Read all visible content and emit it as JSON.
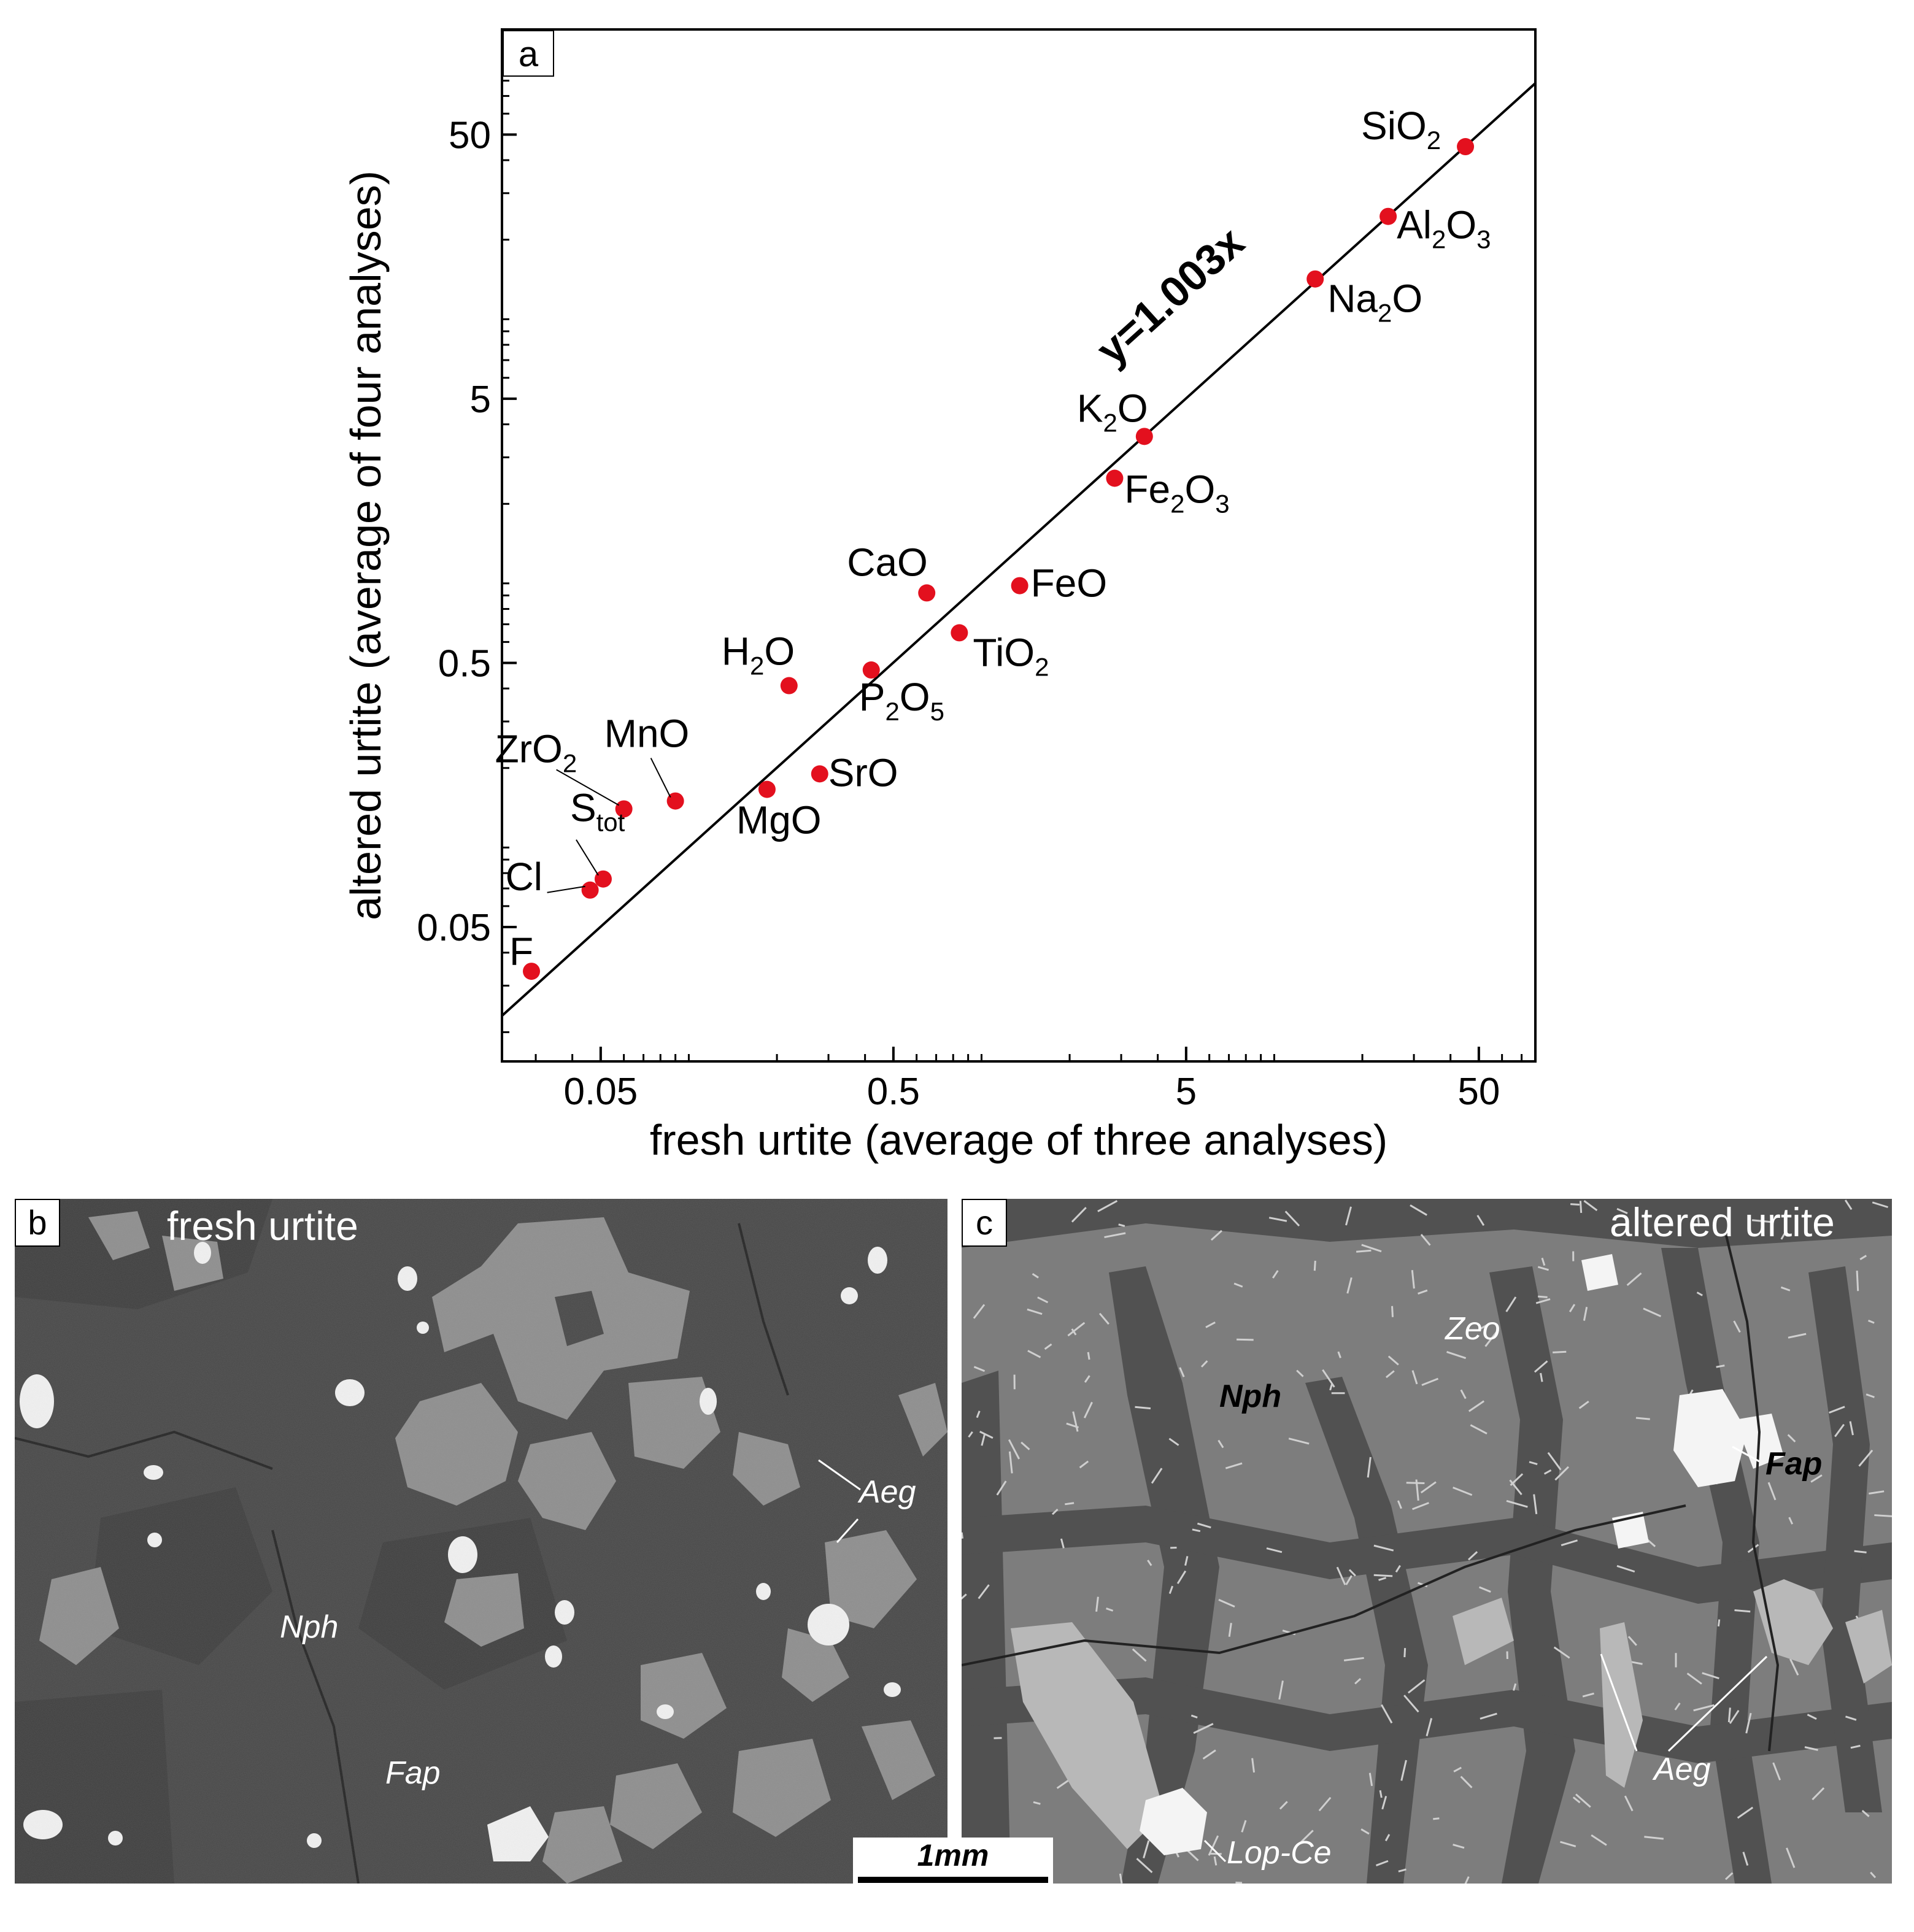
{
  "panel_a": {
    "letter": "a",
    "equation_label": "y=1.003x",
    "xlabel": "fresh urtite (average of three analyses)",
    "ylabel": "altered urtite (average of four analyses)",
    "x_ticks": [
      "0.05",
      "0.5",
      "5",
      "50"
    ],
    "y_ticks": [
      "0.05",
      "0.5",
      "5",
      "50"
    ],
    "point_color": "#e3101e"
  },
  "chart_data": {
    "type": "scatter",
    "scale": "log-log",
    "xlabel": "fresh urtite (average of three analyses)",
    "ylabel": "altered urtite (average of four analyses)",
    "xlim": [
      0.023,
      78
    ],
    "ylim": [
      0.0155,
      125
    ],
    "x_ticks": [
      0.05,
      0.5,
      5,
      50
    ],
    "y_ticks": [
      0.05,
      0.5,
      5,
      50
    ],
    "fit_line": {
      "label": "y=1.003x",
      "slope": 1.003
    },
    "points": [
      {
        "label": "SiO2",
        "base": "SiO",
        "sub": "2",
        "x": 45,
        "y": 45
      },
      {
        "label": "Al2O3",
        "base": "Al",
        "sub": "2",
        "tail": "O",
        "sub2": "3",
        "x": 24.5,
        "y": 24.5
      },
      {
        "label": "Na2O",
        "base": "Na",
        "sub": "2",
        "tail": "O",
        "x": 13.8,
        "y": 14.2
      },
      {
        "label": "K2O",
        "base": "K",
        "sub": "2",
        "tail": "O",
        "x": 3.6,
        "y": 3.6
      },
      {
        "label": "Fe2O3",
        "base": "Fe",
        "sub": "2",
        "tail": "O",
        "sub2": "3",
        "x": 2.85,
        "y": 2.5
      },
      {
        "label": "FeO",
        "base": "FeO",
        "x": 1.35,
        "y": 0.98
      },
      {
        "label": "CaO",
        "base": "CaO",
        "x": 0.65,
        "y": 0.92
      },
      {
        "label": "TiO2",
        "base": "TiO",
        "sub": "2",
        "x": 0.84,
        "y": 0.65
      },
      {
        "label": "P2O5",
        "base": "P",
        "sub": "2",
        "tail": "O",
        "sub2": "5",
        "x": 0.42,
        "y": 0.47
      },
      {
        "label": "H2O",
        "base": "H",
        "sub": "2",
        "tail": "O",
        "x": 0.22,
        "y": 0.41
      },
      {
        "label": "SrO",
        "base": "SrO",
        "x": 0.28,
        "y": 0.19
      },
      {
        "label": "MgO",
        "base": "MgO",
        "x": 0.185,
        "y": 0.166
      },
      {
        "label": "MnO",
        "base": "MnO",
        "x": 0.09,
        "y": 0.15
      },
      {
        "label": "ZrO2",
        "base": "ZrO",
        "sub": "2",
        "x": 0.06,
        "y": 0.14
      },
      {
        "label": "Stot",
        "base": "S",
        "sub": "tot",
        "x": 0.051,
        "y": 0.076
      },
      {
        "label": "Cl",
        "base": "Cl",
        "x": 0.046,
        "y": 0.069
      },
      {
        "label": "F",
        "base": "F",
        "x": 0.029,
        "y": 0.034
      }
    ]
  },
  "panel_b": {
    "letter": "b",
    "title": "fresh urtite",
    "labels": {
      "aeg": "Aeg",
      "nph": "Nph",
      "fap": "Fap"
    }
  },
  "panel_c": {
    "letter": "c",
    "title": "altered urtite",
    "labels": {
      "zeo": "Zeo",
      "nph": "Nph",
      "fap": "Fap",
      "aeg": "Aeg",
      "lop": "Lop-Ce"
    }
  },
  "scale_bar": {
    "label": "1mm"
  }
}
